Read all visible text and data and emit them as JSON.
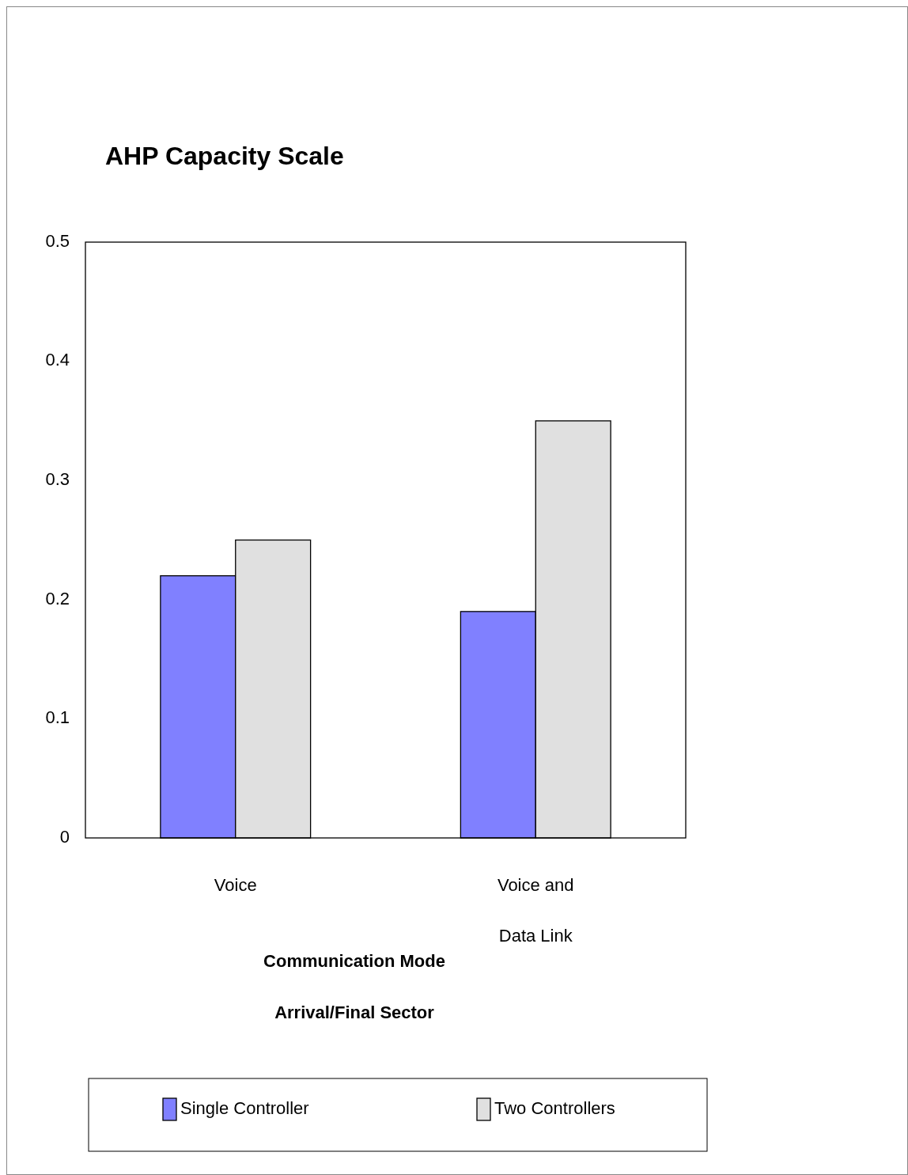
{
  "chart_data": {
    "type": "bar",
    "title": "AHP Capacity Scale",
    "annotations": [
      "Communication Mode",
      "Arrival/Final Sector"
    ],
    "categories": [
      "Voice",
      "Voice and Data Link"
    ],
    "series": [
      {
        "name": "Single Controller",
        "color": "#8080ff",
        "values": [
          0.22,
          0.19
        ]
      },
      {
        "name": "Two Controllers",
        "color": "#e0e0e0",
        "values": [
          0.25,
          0.35
        ]
      }
    ],
    "ylim": [
      0,
      0.5
    ],
    "yticks": [
      0,
      0.1,
      0.2,
      0.3,
      0.4,
      0.5
    ],
    "grid": false,
    "legend": "bottom"
  }
}
